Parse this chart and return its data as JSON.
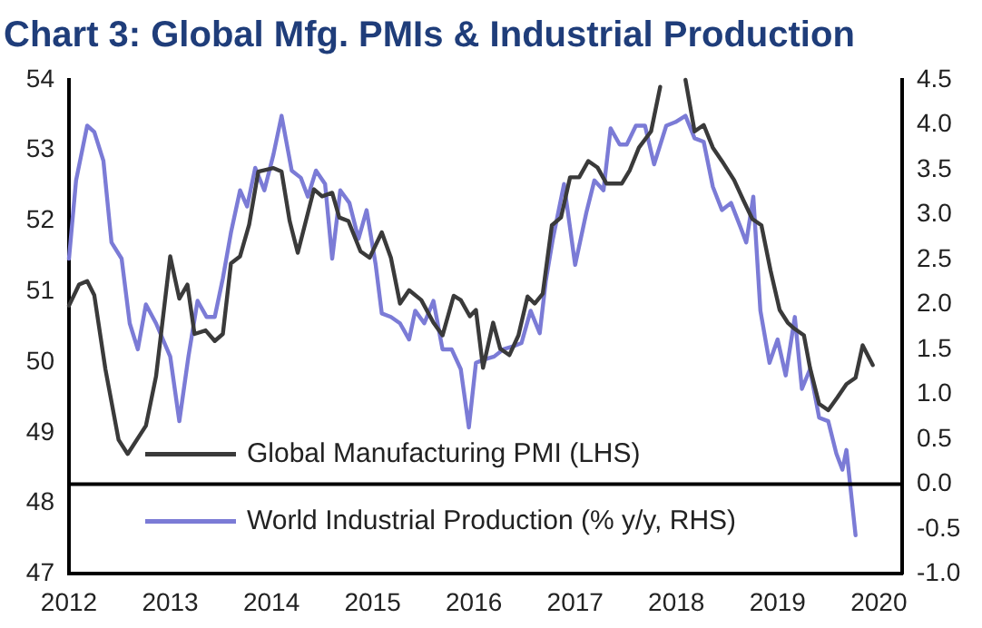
{
  "chart_data": {
    "type": "line",
    "title": "Chart 3: Global Mfg. PMIs & Industrial Production",
    "xlim": [
      2012,
      2020.23
    ],
    "xticks": [
      2012,
      2013,
      2014,
      2015,
      2016,
      2017,
      2018,
      2019,
      2020
    ],
    "ylim": [
      47,
      54
    ],
    "yticks": [
      47,
      48,
      49,
      50,
      51,
      52,
      53,
      54
    ],
    "y2lim": [
      -1,
      4.5
    ],
    "y2ticks": [
      {
        "value": -1,
        "label": "-1.0"
      },
      {
        "value": -0.5,
        "label": "-0.5"
      },
      {
        "value": 0,
        "label": "0.0"
      },
      {
        "value": 0.5,
        "label": "0.5"
      },
      {
        "value": 1,
        "label": "1.0"
      },
      {
        "value": 1.5,
        "label": "1.5"
      },
      {
        "value": 2,
        "label": "2.0"
      },
      {
        "value": 2.5,
        "label": "2.5"
      },
      {
        "value": 3,
        "label": "3.0"
      },
      {
        "value": 3.5,
        "label": "3.5"
      },
      {
        "value": 4,
        "label": "4.0"
      },
      {
        "value": 4.5,
        "label": "4.5"
      }
    ],
    "grid": false,
    "legend": "bottom left",
    "marker": "none",
    "line_style": "solid",
    "ref_lines": [
      {
        "axis": "y2",
        "value": 0,
        "color": "#000000"
      }
    ],
    "series": [
      {
        "name": "Global Manufacturing PMI (LHS)",
        "color": "#3a3a3a",
        "axis": "y",
        "x": [
          2012.0,
          2012.1,
          2012.18,
          2012.25,
          2012.36,
          2012.49,
          2012.58,
          2012.76,
          2012.86,
          2013.0,
          2013.09,
          2013.17,
          2013.24,
          2013.35,
          2013.44,
          2013.52,
          2013.6,
          2013.69,
          2013.78,
          2013.87,
          2014.02,
          2014.1,
          2014.18,
          2014.26,
          2014.34,
          2014.42,
          2014.5,
          2014.6,
          2014.67,
          2014.76,
          2014.88,
          2014.97,
          2015.09,
          2015.18,
          2015.27,
          2015.36,
          2015.48,
          2015.6,
          2015.69,
          2015.8,
          2015.87,
          2015.96,
          2016.02,
          2016.09,
          2016.19,
          2016.26,
          2016.35,
          2016.44,
          2016.53,
          2016.6,
          2016.68,
          2016.77,
          2016.86,
          2016.95,
          2017.04,
          2017.13,
          2017.22,
          2017.31,
          2017.46,
          2017.54,
          2017.63,
          2017.75,
          2017.84,
          2017.92,
          2018.0,
          2018.09,
          2018.18,
          2018.27,
          2018.36,
          2018.45,
          2018.57,
          2018.66,
          2018.75,
          2018.84,
          2018.93,
          2019.02,
          2019.1,
          2019.17,
          2019.26,
          2019.32,
          2019.41,
          2019.5,
          2019.59,
          2019.68,
          2019.77,
          2019.84,
          2019.94
        ],
        "values": [
          50.8,
          51.1,
          51.15,
          50.95,
          49.9,
          48.9,
          48.7,
          49.1,
          49.8,
          51.5,
          50.9,
          51.1,
          50.4,
          50.45,
          50.3,
          50.4,
          51.4,
          51.5,
          51.95,
          52.7,
          52.75,
          52.7,
          52.0,
          51.55,
          52.0,
          52.45,
          52.35,
          52.4,
          52.05,
          52.0,
          51.57,
          51.48,
          51.84,
          51.48,
          50.83,
          51.02,
          50.88,
          50.56,
          50.38,
          50.94,
          50.88,
          50.65,
          50.74,
          49.92,
          50.56,
          50.19,
          50.1,
          50.38,
          50.93,
          50.83,
          50.97,
          51.94,
          52.05,
          52.62,
          52.62,
          52.85,
          52.76,
          52.53,
          52.53,
          52.72,
          53.04,
          53.27,
          53.9,
          null,
          null,
          54.0,
          53.27,
          53.36,
          53.04,
          52.85,
          52.58,
          52.3,
          52.03,
          51.94,
          51.3,
          50.74,
          50.56,
          50.47,
          50.38,
          49.92,
          49.41,
          49.32,
          49.5,
          49.69,
          49.78,
          50.24,
          49.96
        ]
      },
      {
        "name": "World Industrial Production (% y/y, RHS)",
        "color": "#7b7bd6",
        "axis": "y2",
        "x": [
          2012.0,
          2012.07,
          2012.18,
          2012.25,
          2012.34,
          2012.42,
          2012.52,
          2012.6,
          2012.68,
          2012.76,
          2012.86,
          2013.0,
          2013.09,
          2013.18,
          2013.27,
          2013.36,
          2013.44,
          2013.52,
          2013.6,
          2013.69,
          2013.76,
          2013.84,
          2013.93,
          2014.02,
          2014.1,
          2014.2,
          2014.29,
          2014.36,
          2014.44,
          2014.53,
          2014.6,
          2014.68,
          2014.77,
          2014.86,
          2014.94,
          2015.03,
          2015.09,
          2015.18,
          2015.27,
          2015.36,
          2015.42,
          2015.51,
          2015.6,
          2015.69,
          2015.78,
          2015.87,
          2015.95,
          2016.02,
          2016.11,
          2016.2,
          2016.29,
          2016.38,
          2016.47,
          2016.56,
          2016.65,
          2016.71,
          2016.78,
          2016.89,
          2017.0,
          2017.11,
          2017.19,
          2017.28,
          2017.35,
          2017.44,
          2017.51,
          2017.6,
          2017.69,
          2017.78,
          2017.9,
          2017.99,
          2018.09,
          2018.18,
          2018.27,
          2018.36,
          2018.45,
          2018.54,
          2018.63,
          2018.69,
          2018.76,
          2018.83,
          2018.92,
          2019.0,
          2019.08,
          2019.17,
          2019.24,
          2019.32,
          2019.41,
          2019.5,
          2019.58,
          2019.64,
          2019.68,
          2019.77
        ],
        "values": [
          2.51,
          3.38,
          3.99,
          3.92,
          3.6,
          2.69,
          2.51,
          1.79,
          1.5,
          2.0,
          1.79,
          1.42,
          0.7,
          1.42,
          2.04,
          1.86,
          1.86,
          2.29,
          2.8,
          3.27,
          3.09,
          3.52,
          3.27,
          3.67,
          4.1,
          3.49,
          3.41,
          3.2,
          3.49,
          3.34,
          2.51,
          3.27,
          3.13,
          2.73,
          3.05,
          2.44,
          1.9,
          1.86,
          1.79,
          1.61,
          1.93,
          1.79,
          2.04,
          1.5,
          1.5,
          1.28,
          0.63,
          1.35,
          1.39,
          1.42,
          1.5,
          1.53,
          1.57,
          1.93,
          1.68,
          2.26,
          2.73,
          3.34,
          2.44,
          3.02,
          3.38,
          3.27,
          3.96,
          3.78,
          3.78,
          3.99,
          3.99,
          3.56,
          3.99,
          4.03,
          4.1,
          3.85,
          3.81,
          3.31,
          3.05,
          3.13,
          2.87,
          2.69,
          3.2,
          1.93,
          1.35,
          1.61,
          1.21,
          1.86,
          1.06,
          1.28,
          0.74,
          0.7,
          0.34,
          0.16,
          0.38,
          -0.57
        ]
      }
    ]
  }
}
